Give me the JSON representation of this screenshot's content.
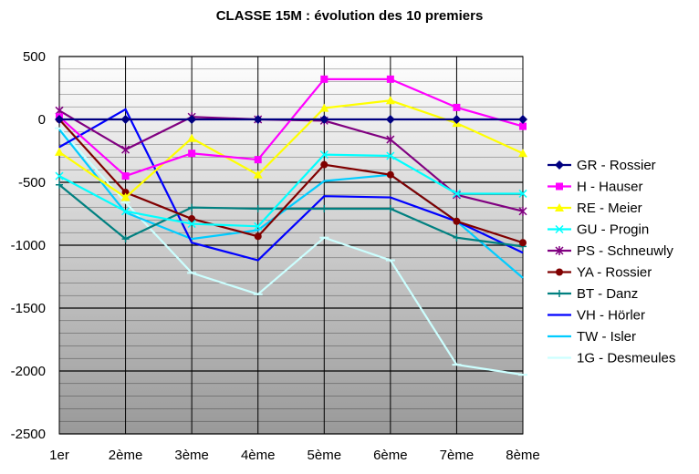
{
  "chart_data": {
    "type": "line",
    "title": "CLASSE 15M : évolution des 10 premiers",
    "xlabel": "",
    "ylabel": "",
    "categories": [
      "1er",
      "2ème",
      "3ème",
      "4ème",
      "5ème",
      "6ème",
      "7ème",
      "8ème"
    ],
    "ylim": [
      -2500,
      500
    ],
    "yticks": [
      500,
      0,
      -500,
      -1000,
      -1500,
      -2000,
      -2500
    ],
    "grid": true,
    "legend_position": "right",
    "series": [
      {
        "name": "GR - Rossier",
        "color": "#000080",
        "marker": "diamond",
        "values": [
          0,
          0,
          0,
          0,
          0,
          0,
          0,
          0
        ]
      },
      {
        "name": "H - Hauser",
        "color": "#ff00ff",
        "marker": "square",
        "values": [
          20,
          -450,
          -270,
          -320,
          320,
          320,
          95,
          -55
        ]
      },
      {
        "name": "RE - Meier",
        "color": "#ffff00",
        "marker": "triangle",
        "values": [
          -260,
          -620,
          -150,
          -440,
          90,
          150,
          -30,
          -270
        ]
      },
      {
        "name": "GU - Progin",
        "color": "#00ffff",
        "marker": "x",
        "values": [
          -450,
          -730,
          -830,
          -850,
          -280,
          -290,
          -590,
          -590
        ]
      },
      {
        "name": "PS - Schneuwly",
        "color": "#800080",
        "marker": "star",
        "values": [
          70,
          -240,
          20,
          0,
          -10,
          -160,
          -600,
          -730
        ]
      },
      {
        "name": "YA - Rossier",
        "color": "#800000",
        "marker": "circle",
        "values": [
          0,
          -580,
          -790,
          -930,
          -360,
          -440,
          -810,
          -980
        ]
      },
      {
        "name": "BT - Danz",
        "color": "#008080",
        "marker": "plus",
        "values": [
          -520,
          -950,
          -700,
          -710,
          -710,
          -710,
          -940,
          -1010
        ]
      },
      {
        "name": "VH - Hörler",
        "color": "#0000ff",
        "marker": "none",
        "values": [
          -220,
          80,
          -980,
          -1120,
          -610,
          -620,
          -810,
          -1060
        ]
      },
      {
        "name": "TW - Isler",
        "color": "#00ccff",
        "marker": "none",
        "values": [
          -80,
          -740,
          -950,
          -880,
          -490,
          -440,
          -810,
          -1260
        ]
      },
      {
        "name": "1G - Desmeules",
        "color": "#ccffff",
        "marker": "dash",
        "values": [
          -70,
          -660,
          -1220,
          -1390,
          -940,
          -1120,
          -1950,
          -2030
        ]
      }
    ]
  }
}
